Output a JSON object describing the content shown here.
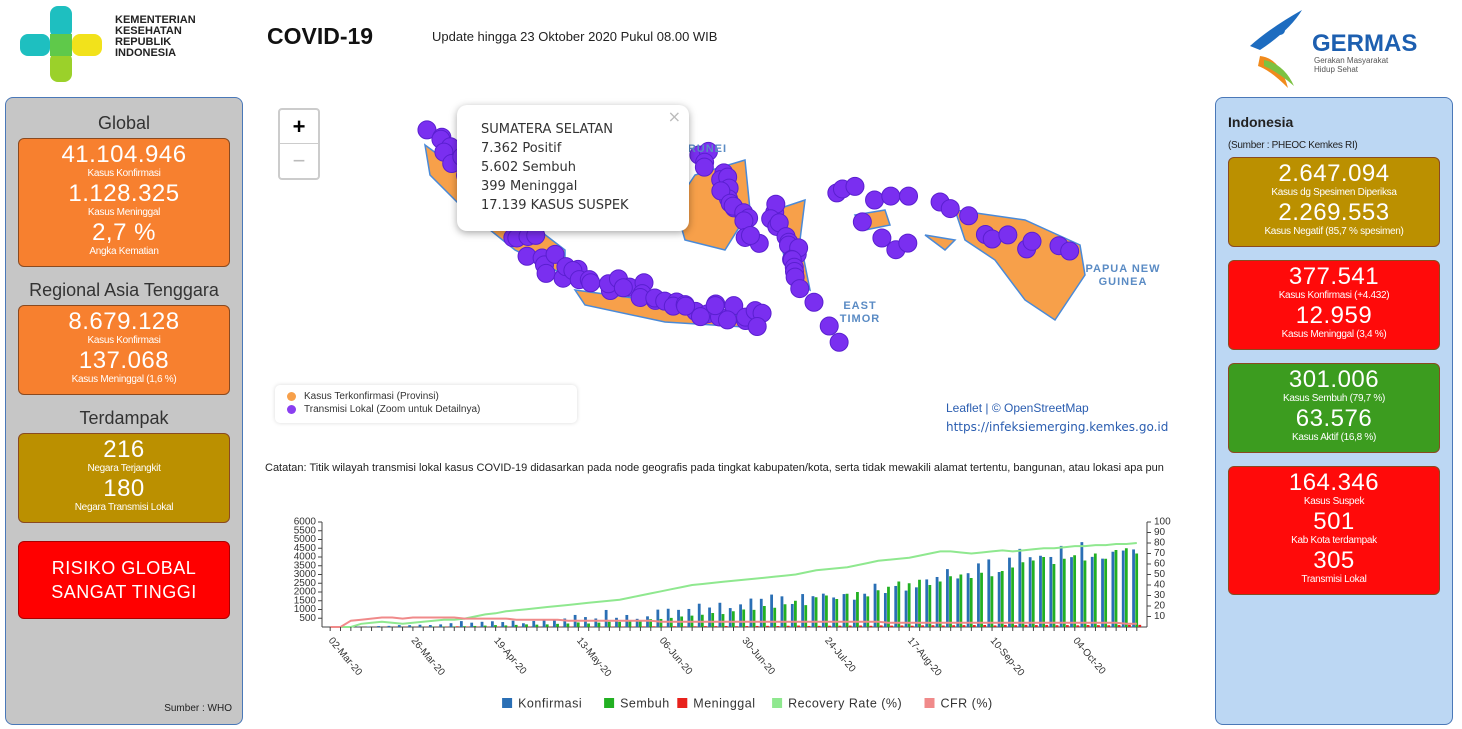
{
  "header": {
    "ministry": "KEMENTERIAN KESEHATAN REPUBLIK INDONESIA",
    "title": "COVID-19",
    "update": "Update hingga 23 Oktober 2020 Pukul 08.00 WIB",
    "germas": "GERMAS",
    "germas_tagline": "Gerakan Masyarakat Hidup Sehat"
  },
  "left_panel": {
    "sections": [
      {
        "title": "Global",
        "color": "#f7802f",
        "stats": [
          {
            "value": "41.104.946",
            "label": "Kasus Konfirmasi"
          },
          {
            "value": "1.128.325",
            "label": "Kasus Meninggal"
          },
          {
            "value": "2,7 %",
            "label": "Angka Kematian"
          }
        ]
      },
      {
        "title": "Regional Asia Tenggara",
        "color": "#f7802f",
        "stats": [
          {
            "value": "8.679.128",
            "label": "Kasus Konfirmasi"
          },
          {
            "value": "137.068",
            "label": "Kasus Meninggal (1,6 %)"
          }
        ]
      },
      {
        "title": "Terdampak",
        "color": "#bb9000",
        "stats": [
          {
            "value": "216",
            "label": "Negara Terjangkit"
          },
          {
            "value": "180",
            "label": "Negara Transmisi Lokal"
          }
        ]
      }
    ],
    "risk": "RISIKO GLOBAL SANGAT TINGGI",
    "source": "Sumber : WHO"
  },
  "map": {
    "zoom_in": "+",
    "zoom_out": "−",
    "popup": [
      "SUMATERA SELATAN",
      "7.362 Positif",
      "5.602 Sembuh",
      "399 Meninggal",
      "17.139 KASUS SUSPEK"
    ],
    "labels": [
      "BRUNEI",
      "PAPUA NEW GUINEA",
      "EAST TIMOR"
    ],
    "legend": [
      {
        "label": "Kasus Terkonfirmasi (Provinsi)",
        "color": "#f7a04a"
      },
      {
        "label": "Transmisi Lokal (Zoom untuk Detailnya)",
        "color": "#8a3ff0"
      }
    ],
    "attribution": "Leaflet | © OpenStreetMap",
    "site": "https://infeksiemerging.kemkes.go.id"
  },
  "note": "Catatan: Titik wilayah transmisi lokal kasus COVID-19 didasarkan pada node geografis pada tingkat kabupaten/kota, serta tidak mewakili alamat tertentu, bangunan, atau lokasi apa pun",
  "chart_data": {
    "type": "bar",
    "categories": [
      "02-Mar-20",
      null,
      null,
      null,
      null,
      null,
      null,
      null,
      "26-Mar-20",
      null,
      null,
      null,
      null,
      null,
      null,
      null,
      "19-Apr-20",
      null,
      null,
      null,
      null,
      null,
      null,
      null,
      "13-May-20",
      null,
      null,
      null,
      null,
      null,
      null,
      null,
      "06-Jun-20",
      null,
      null,
      null,
      null,
      null,
      null,
      null,
      "30-Jun-20",
      null,
      null,
      null,
      null,
      null,
      null,
      null,
      "24-Jul-20",
      null,
      null,
      null,
      null,
      null,
      null,
      null,
      "17-Aug-20",
      null,
      null,
      null,
      null,
      null,
      null,
      null,
      "10-Sep-20",
      null,
      null,
      null,
      null,
      null,
      null,
      null,
      "04-Oct-20",
      null,
      null,
      null,
      null,
      null,
      null
    ],
    "series": [
      {
        "name": "Konfirmasi",
        "color": "#2a6fb5",
        "values": [
          2,
          0,
          13,
          17,
          27,
          55,
          64,
          107,
          103,
          130,
          113,
          149,
          218,
          337,
          248,
          297,
          327,
          283,
          357,
          214,
          347,
          433,
          395,
          484,
          689,
          568,
          486,
          973,
          526,
          687,
          467,
          609,
          993,
          1043,
          979,
          1031,
          1331,
          1113,
          1385,
          1082,
          1293,
          1624,
          1611,
          1853,
          1752,
          1315,
          1882,
          1761,
          1906,
          1687,
          1882,
          1560,
          1902,
          2473,
          1942,
          2345,
          2081,
          2266,
          2719,
          2858,
          3308,
          2775,
          3075,
          3634,
          3861,
          3141,
          3963,
          4465,
          3989,
          4071,
          4002,
          4634,
          3992,
          4850,
          4007,
          3906,
          4301,
          4369,
          4432
        ]
      },
      {
        "name": "Sembuh",
        "color": "#22b022",
        "values": [
          0,
          0,
          0,
          0,
          1,
          2,
          3,
          5,
          8,
          10,
          20,
          25,
          30,
          45,
          60,
          80,
          108,
          90,
          120,
          150,
          135,
          150,
          180,
          200,
          260,
          200,
          250,
          300,
          295,
          400,
          350,
          450,
          460,
          520,
          600,
          650,
          700,
          800,
          740,
          900,
          1000,
          980,
          1200,
          1100,
          1300,
          1500,
          1250,
          1700,
          1800,
          1600,
          1900,
          2000,
          1750,
          2100,
          2300,
          2600,
          2500,
          2700,
          2400,
          2600,
          2900,
          3000,
          2800,
          3100,
          2900,
          3200,
          3400,
          3700,
          3800,
          4000,
          3600,
          3900,
          4100,
          3800,
          4200,
          3900,
          4400,
          4500,
          4200
        ]
      },
      {
        "name": "Meninggal",
        "color": "#e8221c",
        "values": [
          0,
          0,
          1,
          2,
          5,
          10,
          12,
          15,
          11,
          14,
          12,
          20,
          40,
          25,
          20,
          18,
          24,
          19,
          20,
          22,
          15,
          20,
          17,
          21,
          18,
          16,
          20,
          24,
          30,
          28,
          35,
          40,
          32,
          45,
          38,
          41,
          51,
          50,
          58,
          45,
          55,
          60,
          65,
          58,
          70,
          80,
          60,
          65,
          72,
          74,
          80,
          85,
          70,
          90,
          79,
          88,
          75,
          95,
          100,
          85,
          100,
          105,
          110,
          115,
          90,
          120,
          105,
          124,
          110,
          117,
          102,
          108,
          96,
          113,
          105,
          98,
          110,
          120,
          123
        ]
      },
      {
        "name": "Recovery Rate (%)",
        "color": "#8fe88f",
        "axis": "y2",
        "type": "line",
        "values": [
          0,
          0,
          0,
          3,
          4,
          5,
          4,
          3,
          4,
          5,
          6,
          7,
          7,
          8,
          10,
          12,
          13,
          15,
          16,
          17,
          18,
          19,
          20,
          21,
          22,
          23,
          24,
          25,
          26,
          28,
          30,
          32,
          34,
          36,
          38,
          40,
          41,
          42,
          43,
          44,
          45,
          46,
          47,
          48,
          49,
          50,
          52,
          54,
          55,
          56,
          57,
          59,
          61,
          63,
          64,
          65,
          66,
          68,
          70,
          72,
          72,
          71,
          70,
          71,
          72,
          73,
          72,
          73,
          74,
          75,
          75,
          76,
          77,
          77,
          78,
          78,
          79,
          79,
          80
        ]
      },
      {
        "name": "CFR (%)",
        "color": "#f08a8a",
        "axis": "y2",
        "type": "line",
        "values": [
          0,
          0,
          6,
          7,
          8,
          9,
          9,
          8,
          9,
          9,
          9,
          9,
          9,
          8,
          8,
          8,
          8,
          8,
          7,
          7,
          7,
          7,
          7,
          6,
          6,
          6,
          6,
          6,
          6,
          6,
          6,
          6,
          5,
          5,
          5,
          5,
          5,
          5,
          5,
          5,
          5,
          5,
          5,
          5,
          5,
          5,
          5,
          5,
          5,
          5,
          5,
          5,
          5,
          5,
          4,
          4,
          4,
          4,
          4,
          4,
          4,
          4,
          4,
          4,
          4,
          4,
          4,
          4,
          4,
          4,
          4,
          4,
          4,
          4,
          4,
          4,
          4,
          3,
          3
        ]
      }
    ],
    "ylim": [
      0,
      6000
    ],
    "yticks": [
      500,
      1000,
      1500,
      2000,
      2500,
      3000,
      3500,
      4000,
      4500,
      5000,
      5500,
      6000
    ],
    "y2lim": [
      0,
      100
    ],
    "y2ticks": [
      10,
      20,
      30,
      40,
      50,
      60,
      70,
      80,
      90,
      100
    ],
    "legend": "bottom"
  },
  "right_panel": {
    "title": "Indonesia",
    "source": "(Sumber : PHEOC Kemkes RI)",
    "boxes": [
      {
        "color": "#bb9000",
        "stats": [
          {
            "value": "2.647.094",
            "label": "Kasus dg Spesimen Diperiksa"
          },
          {
            "value": "2.269.553",
            "label": "Kasus Negatif (85,7 % spesimen)"
          }
        ]
      },
      {
        "color": "#ff0a0a",
        "stats": [
          {
            "value": "377.541",
            "label": "Kasus Konfirmasi (+4.432)"
          },
          {
            "value": "12.959",
            "label": "Kasus Meninggal (3,4 %)"
          }
        ]
      },
      {
        "color": "#3c9c1f",
        "stats": [
          {
            "value": "301.006",
            "label": "Kasus Sembuh (79,7 %)"
          },
          {
            "value": "63.576",
            "label": "Kasus Aktif (16,8 %)"
          }
        ]
      },
      {
        "color": "#ff0a0a",
        "stats": [
          {
            "value": "164.346",
            "label": "Kasus Suspek"
          },
          {
            "value": "501",
            "label": "Kab Kota terdampak"
          },
          {
            "value": "305",
            "label": "Transmisi Lokal"
          }
        ]
      }
    ]
  }
}
